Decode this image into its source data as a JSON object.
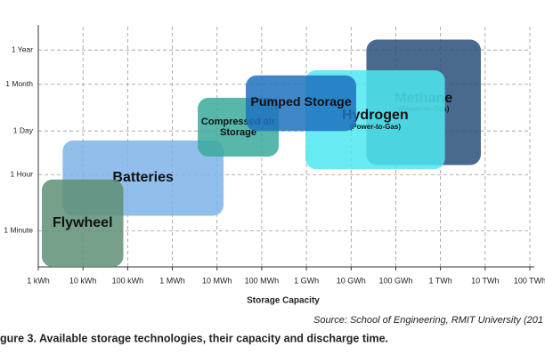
{
  "chart_data": {
    "type": "range-box",
    "x_label": "Storage Capacity",
    "source": "Source: School of Engineering, RMIT University (201",
    "caption": "gure 3. Available storage technologies, their capacity and discharge time.",
    "xlog": true,
    "ylog": true,
    "grid": true,
    "xlim": [
      1,
      100000000000
    ],
    "ylim": [
      0.0012,
      25000
    ],
    "xticks": [
      {
        "value": 1,
        "label": "1 kWh"
      },
      {
        "value": 10,
        "label": "10 kWh"
      },
      {
        "value": 100,
        "label": "100 kWh"
      },
      {
        "value": 1000,
        "label": "1 MWh"
      },
      {
        "value": 10000,
        "label": "10 MWh"
      },
      {
        "value": 100000,
        "label": "100 MWh"
      },
      {
        "value": 1000000,
        "label": "1 GWh"
      },
      {
        "value": 10000000,
        "label": "10 GWh"
      },
      {
        "value": 100000000,
        "label": "100 GWh"
      },
      {
        "value": 1000000000,
        "label": "1 TWh"
      },
      {
        "value": 10000000000,
        "label": "10 TWh"
      },
      {
        "value": 100000000000,
        "label": "100 TWh"
      }
    ],
    "yticks": [
      {
        "value": 0.016667,
        "label": "1 Minute"
      },
      {
        "value": 1,
        "label": "1 Hour"
      },
      {
        "value": 24,
        "label": "1 Day"
      },
      {
        "value": 720,
        "label": "1 Month"
      },
      {
        "value": 8760,
        "label": "1 Year"
      }
    ],
    "series": [
      {
        "name": "Batteries",
        "color": "#7fb3e8",
        "x": [
          3.5,
          14000
        ],
        "y": [
          0.05,
          12
        ]
      },
      {
        "name": "Flywheel",
        "color": "#5e8f74",
        "x": [
          1.2,
          80
        ],
        "y": [
          0.0012,
          0.7
        ]
      },
      {
        "name": "Compressed air Storage",
        "color": "#3aaa9c",
        "x": [
          3700,
          240000
        ],
        "y": [
          3.7,
          270
        ]
      },
      {
        "name": "Methane",
        "sublabel": "(Power-to-Gas)",
        "color": "#2a4f7a",
        "x": [
          22000000,
          8000000000
        ],
        "y": [
          2,
          18600
        ]
      },
      {
        "name": "Hydrogen",
        "sublabel": "(Power-to-Gas)",
        "color": "#4ee8f0",
        "x": [
          950000,
          1260000000
        ],
        "y": [
          1.5,
          2000
        ]
      },
      {
        "name": "Pumped Storage",
        "color": "#1e72c0",
        "x": [
          44000,
          13000000
        ],
        "y": [
          24,
          1380
        ]
      }
    ]
  }
}
